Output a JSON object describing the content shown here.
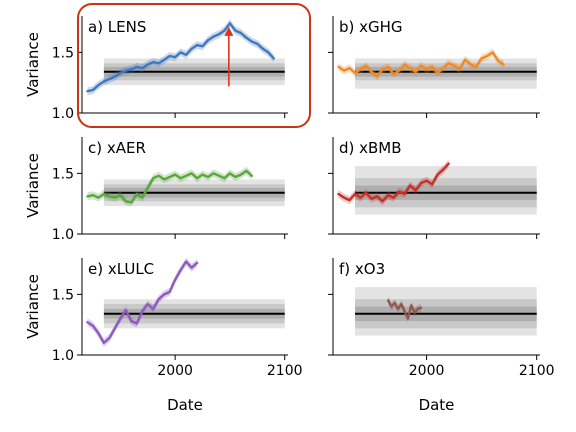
{
  "figure": {
    "ylabel": "Variance",
    "xlabel": "Date",
    "highlight_color": "#cc3311",
    "arrow_color": "#e0341a"
  },
  "chart_data": [
    {
      "type": "line",
      "title": "a) LENS",
      "color": "#3f78bd",
      "xlim": [
        1915,
        2103
      ],
      "ylim": [
        1.0,
        1.8
      ],
      "xticks": [
        2000,
        2100
      ],
      "yticks": [
        1.0,
        1.5
      ],
      "xtick_labels_shown": false,
      "ytick_labels_shown": true,
      "reference": {
        "mean": 1.34,
        "bands": [
          [
            1.3,
            1.38
          ],
          [
            1.27,
            1.41
          ],
          [
            1.23,
            1.45
          ]
        ]
      },
      "highlighted": true,
      "arrow": {
        "x": 2049,
        "y_from": 1.22,
        "y_to": 1.71
      },
      "series": [
        {
          "x": [
            1920,
            1925,
            1930,
            1935,
            1940,
            1945,
            1950,
            1955,
            1960,
            1965,
            1970,
            1975,
            1980,
            1985,
            1990,
            1995,
            2000,
            2005,
            2010,
            2015,
            2020,
            2025,
            2030,
            2035,
            2040,
            2045,
            2050,
            2055,
            2060,
            2065,
            2070,
            2075,
            2080,
            2085,
            2090
          ],
          "values": [
            1.18,
            1.19,
            1.23,
            1.26,
            1.28,
            1.3,
            1.33,
            1.35,
            1.36,
            1.38,
            1.37,
            1.4,
            1.42,
            1.41,
            1.44,
            1.47,
            1.46,
            1.5,
            1.48,
            1.53,
            1.56,
            1.55,
            1.6,
            1.63,
            1.65,
            1.68,
            1.74,
            1.68,
            1.66,
            1.62,
            1.59,
            1.57,
            1.53,
            1.5,
            1.45
          ]
        }
      ]
    },
    {
      "type": "line",
      "title": "b) xGHG",
      "color": "#ee8a27",
      "xlim": [
        1915,
        2103
      ],
      "ylim": [
        1.0,
        1.8
      ],
      "xticks": [
        2000,
        2100
      ],
      "yticks": [
        1.0,
        1.5
      ],
      "xtick_labels_shown": false,
      "ytick_labels_shown": false,
      "reference": {
        "mean": 1.34,
        "bands": [
          [
            1.3,
            1.38
          ],
          [
            1.27,
            1.41
          ],
          [
            1.2,
            1.45
          ]
        ]
      },
      "series": [
        {
          "x": [
            1920,
            1925,
            1930,
            1935,
            1940,
            1945,
            1950,
            1955,
            1960,
            1965,
            1970,
            1975,
            1980,
            1985,
            1990,
            1995,
            2000,
            2005,
            2010,
            2015,
            2020,
            2025,
            2030,
            2035,
            2040,
            2045,
            2050,
            2055,
            2060,
            2065,
            2070
          ],
          "values": [
            1.38,
            1.35,
            1.37,
            1.33,
            1.36,
            1.39,
            1.34,
            1.3,
            1.36,
            1.38,
            1.32,
            1.35,
            1.4,
            1.37,
            1.34,
            1.39,
            1.36,
            1.38,
            1.33,
            1.37,
            1.41,
            1.39,
            1.36,
            1.44,
            1.4,
            1.38,
            1.45,
            1.47,
            1.5,
            1.43,
            1.4
          ]
        }
      ]
    },
    {
      "type": "line",
      "title": "c) xAER",
      "color": "#5aa63f",
      "xlim": [
        1915,
        2103
      ],
      "ylim": [
        1.0,
        1.8
      ],
      "xticks": [
        2000,
        2100
      ],
      "yticks": [
        1.0,
        1.5
      ],
      "xtick_labels_shown": false,
      "ytick_labels_shown": true,
      "reference": {
        "mean": 1.34,
        "bands": [
          [
            1.3,
            1.38
          ],
          [
            1.27,
            1.41
          ],
          [
            1.23,
            1.45
          ]
        ]
      },
      "series": [
        {
          "x": [
            1920,
            1925,
            1930,
            1935,
            1940,
            1945,
            1950,
            1955,
            1960,
            1965,
            1970,
            1975,
            1980,
            1985,
            1990,
            1995,
            2000,
            2005,
            2010,
            2015,
            2020,
            2025,
            2030,
            2035,
            2040,
            2045,
            2050,
            2055,
            2060,
            2065,
            2070
          ],
          "values": [
            1.31,
            1.32,
            1.3,
            1.33,
            1.31,
            1.3,
            1.32,
            1.27,
            1.26,
            1.33,
            1.3,
            1.38,
            1.46,
            1.48,
            1.45,
            1.47,
            1.49,
            1.46,
            1.48,
            1.5,
            1.46,
            1.49,
            1.47,
            1.5,
            1.48,
            1.46,
            1.5,
            1.47,
            1.49,
            1.52,
            1.48
          ]
        }
      ]
    },
    {
      "type": "line",
      "title": "d) xBMB",
      "color": "#c4312a",
      "xlim": [
        1915,
        2103
      ],
      "ylim": [
        1.0,
        1.8
      ],
      "xticks": [
        2000,
        2100
      ],
      "yticks": [
        1.0,
        1.5
      ],
      "xtick_labels_shown": false,
      "ytick_labels_shown": false,
      "reference": {
        "mean": 1.34,
        "bands": [
          [
            1.28,
            1.4
          ],
          [
            1.22,
            1.46
          ],
          [
            1.16,
            1.56
          ]
        ]
      },
      "series": [
        {
          "x": [
            1920,
            1925,
            1930,
            1935,
            1940,
            1945,
            1950,
            1955,
            1960,
            1965,
            1970,
            1975,
            1980,
            1985,
            1990,
            1995,
            2000,
            2005,
            2010,
            2015,
            2020
          ],
          "values": [
            1.33,
            1.3,
            1.28,
            1.33,
            1.3,
            1.34,
            1.29,
            1.31,
            1.27,
            1.32,
            1.3,
            1.35,
            1.33,
            1.4,
            1.36,
            1.42,
            1.44,
            1.41,
            1.49,
            1.53,
            1.58
          ]
        }
      ]
    },
    {
      "type": "line",
      "title": "e) xLULC",
      "color": "#8b5bbd",
      "xlim": [
        1915,
        2103
      ],
      "ylim": [
        1.0,
        1.8
      ],
      "xticks": [
        2000,
        2100
      ],
      "yticks": [
        1.0,
        1.5
      ],
      "xtick_labels_shown": true,
      "ytick_labels_shown": true,
      "reference": {
        "mean": 1.34,
        "bands": [
          [
            1.3,
            1.38
          ],
          [
            1.26,
            1.42
          ],
          [
            1.22,
            1.46
          ]
        ]
      },
      "series": [
        {
          "x": [
            1920,
            1925,
            1930,
            1935,
            1940,
            1945,
            1950,
            1955,
            1960,
            1965,
            1970,
            1975,
            1980,
            1985,
            1990,
            1995,
            2000,
            2005,
            2010,
            2015,
            2020
          ],
          "values": [
            1.27,
            1.24,
            1.18,
            1.1,
            1.14,
            1.22,
            1.3,
            1.37,
            1.28,
            1.26,
            1.36,
            1.42,
            1.38,
            1.46,
            1.5,
            1.52,
            1.62,
            1.7,
            1.77,
            1.72,
            1.76
          ]
        }
      ]
    },
    {
      "type": "line",
      "title": "f) xO3",
      "color": "#8f5a4f",
      "xlim": [
        1915,
        2103
      ],
      "ylim": [
        1.0,
        1.8
      ],
      "xticks": [
        2000,
        2100
      ],
      "yticks": [
        1.0,
        1.5
      ],
      "xtick_labels_shown": true,
      "ytick_labels_shown": false,
      "reference": {
        "mean": 1.34,
        "bands": [
          [
            1.28,
            1.4
          ],
          [
            1.22,
            1.46
          ],
          [
            1.16,
            1.56
          ]
        ]
      },
      "series": [
        {
          "x": [
            1965,
            1968,
            1971,
            1974,
            1977,
            1980,
            1983,
            1986,
            1989,
            1992,
            1995
          ],
          "values": [
            1.45,
            1.4,
            1.43,
            1.38,
            1.42,
            1.36,
            1.3,
            1.41,
            1.35,
            1.38,
            1.39
          ]
        }
      ]
    }
  ]
}
